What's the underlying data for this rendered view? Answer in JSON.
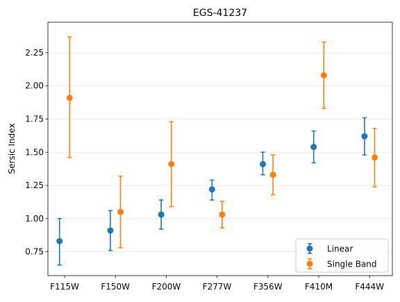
{
  "chart_data": {
    "type": "scatter",
    "title": "EGS-41237",
    "xlabel": "",
    "ylabel": "Sersic Index",
    "categories": [
      "F115W",
      "F150W",
      "F200W",
      "F277W",
      "F356W",
      "F410M",
      "F444W"
    ],
    "ylim": [
      0.57,
      2.48
    ],
    "yticks": [
      0.75,
      1.0,
      1.25,
      1.5,
      1.75,
      2.0,
      2.25
    ],
    "ytick_labels": [
      "0.75",
      "1.00",
      "1.25",
      "1.50",
      "1.75",
      "2.00",
      "2.25"
    ],
    "grid": "y",
    "legend_position": "lower-right",
    "series": [
      {
        "name": "Linear",
        "color": "#1f77b4",
        "values": [
          0.83,
          0.91,
          1.03,
          1.22,
          1.41,
          1.54,
          1.62
        ],
        "err_low": [
          0.65,
          0.76,
          0.92,
          1.14,
          1.33,
          1.42,
          1.48
        ],
        "err_high": [
          1.0,
          1.06,
          1.14,
          1.29,
          1.5,
          1.66,
          1.76
        ]
      },
      {
        "name": "Single Band",
        "color": "#ff7f0e",
        "values": [
          1.91,
          1.05,
          1.41,
          1.03,
          1.33,
          2.08,
          1.46
        ],
        "err_low": [
          1.46,
          0.78,
          1.09,
          0.93,
          1.18,
          1.83,
          1.24
        ],
        "err_high": [
          2.37,
          1.32,
          1.73,
          1.13,
          1.48,
          2.33,
          1.68
        ]
      }
    ]
  }
}
